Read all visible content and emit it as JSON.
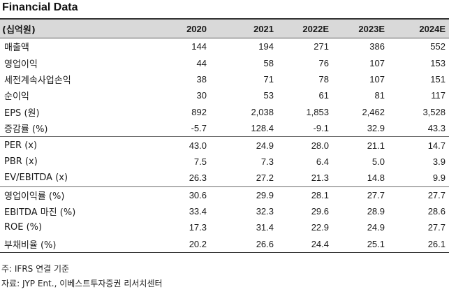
{
  "title": "Financial Data",
  "header": [
    "(십억원)",
    "2020",
    "2021",
    "2022E",
    "2023E",
    "2024E"
  ],
  "rows": [
    {
      "label": "매출액",
      "values": [
        "144",
        "194",
        "271",
        "386",
        "552"
      ]
    },
    {
      "label": "영업이익",
      "values": [
        "44",
        "58",
        "76",
        "107",
        "153"
      ]
    },
    {
      "label": "세전계속사업손익",
      "values": [
        "38",
        "71",
        "78",
        "107",
        "151"
      ]
    },
    {
      "label": "순이익",
      "values": [
        "30",
        "53",
        "61",
        "81",
        "117"
      ]
    },
    {
      "label": "EPS (원)",
      "values": [
        "892",
        "2,038",
        "1,853",
        "2,462",
        "3,528"
      ]
    },
    {
      "label": "증감률 (%)",
      "values": [
        "-5.7",
        "128.4",
        "-9.1",
        "32.9",
        "43.3"
      ]
    },
    {
      "label": "PER (x)",
      "values": [
        "43.0",
        "24.9",
        "28.0",
        "21.1",
        "14.7"
      ]
    },
    {
      "label": "PBR (x)",
      "values": [
        "7.5",
        "7.3",
        "6.4",
        "5.0",
        "3.9"
      ]
    },
    {
      "label": "EV/EBITDA (x)",
      "values": [
        "26.3",
        "27.2",
        "21.3",
        "14.8",
        "9.9"
      ]
    },
    {
      "label": "영업이익률 (%)",
      "values": [
        "30.6",
        "29.9",
        "28.1",
        "27.7",
        "27.7"
      ]
    },
    {
      "label": "EBITDA 마진 (%)",
      "values": [
        "33.4",
        "32.3",
        "29.6",
        "28.9",
        "28.6"
      ]
    },
    {
      "label": "ROE (%)",
      "values": [
        "17.3",
        "31.4",
        "22.9",
        "24.9",
        "27.7"
      ]
    },
    {
      "label": "부채비율 (%)",
      "values": [
        "20.2",
        "26.6",
        "24.4",
        "25.1",
        "26.1"
      ]
    }
  ],
  "notes": {
    "note1": "주: IFRS 연결 기준",
    "note2": "자료: JYP Ent., 이베스트투자증권 리서치센터"
  }
}
